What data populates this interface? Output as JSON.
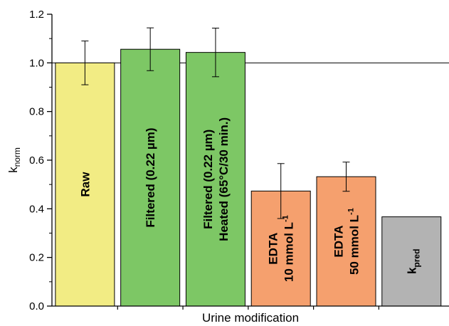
{
  "chart_data": {
    "type": "bar",
    "xlabel": "Urine modification",
    "ylabel": "k",
    "ylabel_sub": "norm",
    "ylim": [
      0,
      1.2
    ],
    "yticks": [
      "0.0",
      "0.2",
      "0.4",
      "0.6",
      "0.8",
      "1.0",
      "1.2"
    ],
    "reference_line": 1.0,
    "grid": false,
    "legend": "none",
    "bars": [
      {
        "lines": [
          {
            "text": "Raw"
          }
        ],
        "value": 1.0,
        "error": 0.09,
        "color": "#f2ec84"
      },
      {
        "lines": [
          {
            "text": "Filtered (0.22 µm)"
          }
        ],
        "value": 1.056,
        "error": 0.088,
        "color": "#7dc765"
      },
      {
        "lines": [
          {
            "text": "Filtered (0.22 µm)"
          },
          {
            "text": "Heated (65°C/30 min.)"
          }
        ],
        "value": 1.043,
        "error": 0.1,
        "color": "#7dc765"
      },
      {
        "lines": [
          {
            "text": "EDTA"
          },
          {
            "text": "10 mmol L",
            "sup": "-1"
          }
        ],
        "value": 0.473,
        "error": 0.113,
        "color": "#f5a06e"
      },
      {
        "lines": [
          {
            "text": "EDTA"
          },
          {
            "text": "50 mmol L",
            "sup": "-1"
          }
        ],
        "value": 0.532,
        "error": 0.06,
        "color": "#f5a06e"
      },
      {
        "lines": [
          {
            "text": "k",
            "sub": "pred"
          }
        ],
        "value": 0.367,
        "error": null,
        "color": "#b3b3b3"
      }
    ]
  }
}
